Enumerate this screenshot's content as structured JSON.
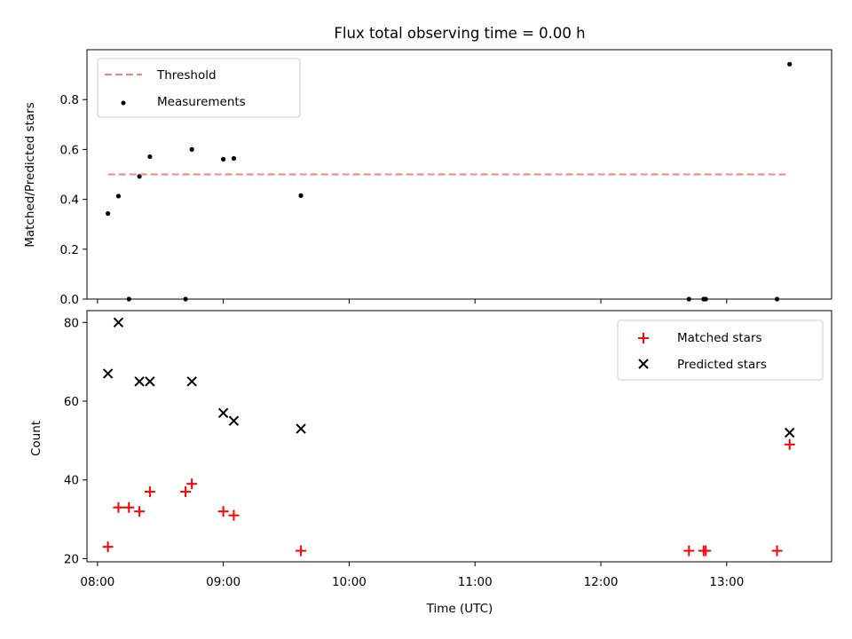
{
  "chart_data": [
    {
      "type": "scatter",
      "title": "Flux total observing time = 0.00 h",
      "ylabel": "Matched/Predicted stars",
      "xlabel": "",
      "xlim": [
        "07:55",
        "13:50"
      ],
      "ylim": [
        0,
        1.0
      ],
      "yticks": [
        0.0,
        0.2,
        0.4,
        0.6,
        0.8
      ],
      "ytick_labels": [
        "0.0",
        "0.2",
        "0.4",
        "0.6",
        "0.8"
      ],
      "xticks": [
        "08:00",
        "09:00",
        "10:00",
        "11:00",
        "12:00",
        "13:00"
      ],
      "show_x_tick_labels": false,
      "grid": false,
      "legend_position": "upper-left",
      "threshold": {
        "label": "Threshold",
        "value": 0.5,
        "x_start": "08:05",
        "x_end": "13:28",
        "color": "#ff8080",
        "style": "dashed"
      },
      "series": [
        {
          "name": "Measurements",
          "marker": "dot",
          "color": "#000000",
          "x": [
            "08:05",
            "08:10",
            "08:15",
            "08:20",
            "08:25",
            "08:42",
            "08:45",
            "09:00",
            "09:05",
            "09:37",
            "12:42",
            "12:49",
            "12:50",
            "13:24",
            "13:30"
          ],
          "y": [
            0.343,
            0.413,
            0.0,
            0.492,
            0.571,
            0.0,
            0.6,
            0.561,
            0.564,
            0.415,
            0.0,
            0.0,
            0.0,
            0.0,
            0.942
          ]
        }
      ]
    },
    {
      "type": "scatter",
      "title": "",
      "ylabel": "Count",
      "xlabel": "Time (UTC)",
      "xlim": [
        "07:55",
        "13:50"
      ],
      "ylim": [
        19.2,
        83.0
      ],
      "yticks": [
        20,
        40,
        60,
        80
      ],
      "ytick_labels": [
        "20",
        "40",
        "60",
        "80"
      ],
      "xticks": [
        "08:00",
        "09:00",
        "10:00",
        "11:00",
        "12:00",
        "13:00"
      ],
      "xtick_labels": [
        "08:00",
        "09:00",
        "10:00",
        "11:00",
        "12:00",
        "13:00"
      ],
      "show_x_tick_labels": true,
      "grid": false,
      "legend_position": "upper-right",
      "series": [
        {
          "name": "Matched stars",
          "marker": "plus",
          "color": "#ff0000",
          "x": [
            "08:05",
            "08:10",
            "08:15",
            "08:20",
            "08:25",
            "08:42",
            "08:45",
            "09:00",
            "09:05",
            "09:37",
            "12:42",
            "12:49",
            "12:50",
            "13:24",
            "13:30"
          ],
          "y": [
            23,
            33,
            33,
            32,
            37,
            37,
            39,
            32,
            31,
            22,
            22,
            22,
            22,
            22,
            49
          ]
        },
        {
          "name": "Predicted stars",
          "marker": "x",
          "color": "#000000",
          "x": [
            "08:05",
            "08:10",
            "08:20",
            "08:25",
            "08:45",
            "09:00",
            "09:05",
            "09:37",
            "13:30"
          ],
          "y": [
            67,
            80,
            65,
            65,
            65,
            57,
            55,
            53,
            52
          ]
        }
      ]
    }
  ]
}
